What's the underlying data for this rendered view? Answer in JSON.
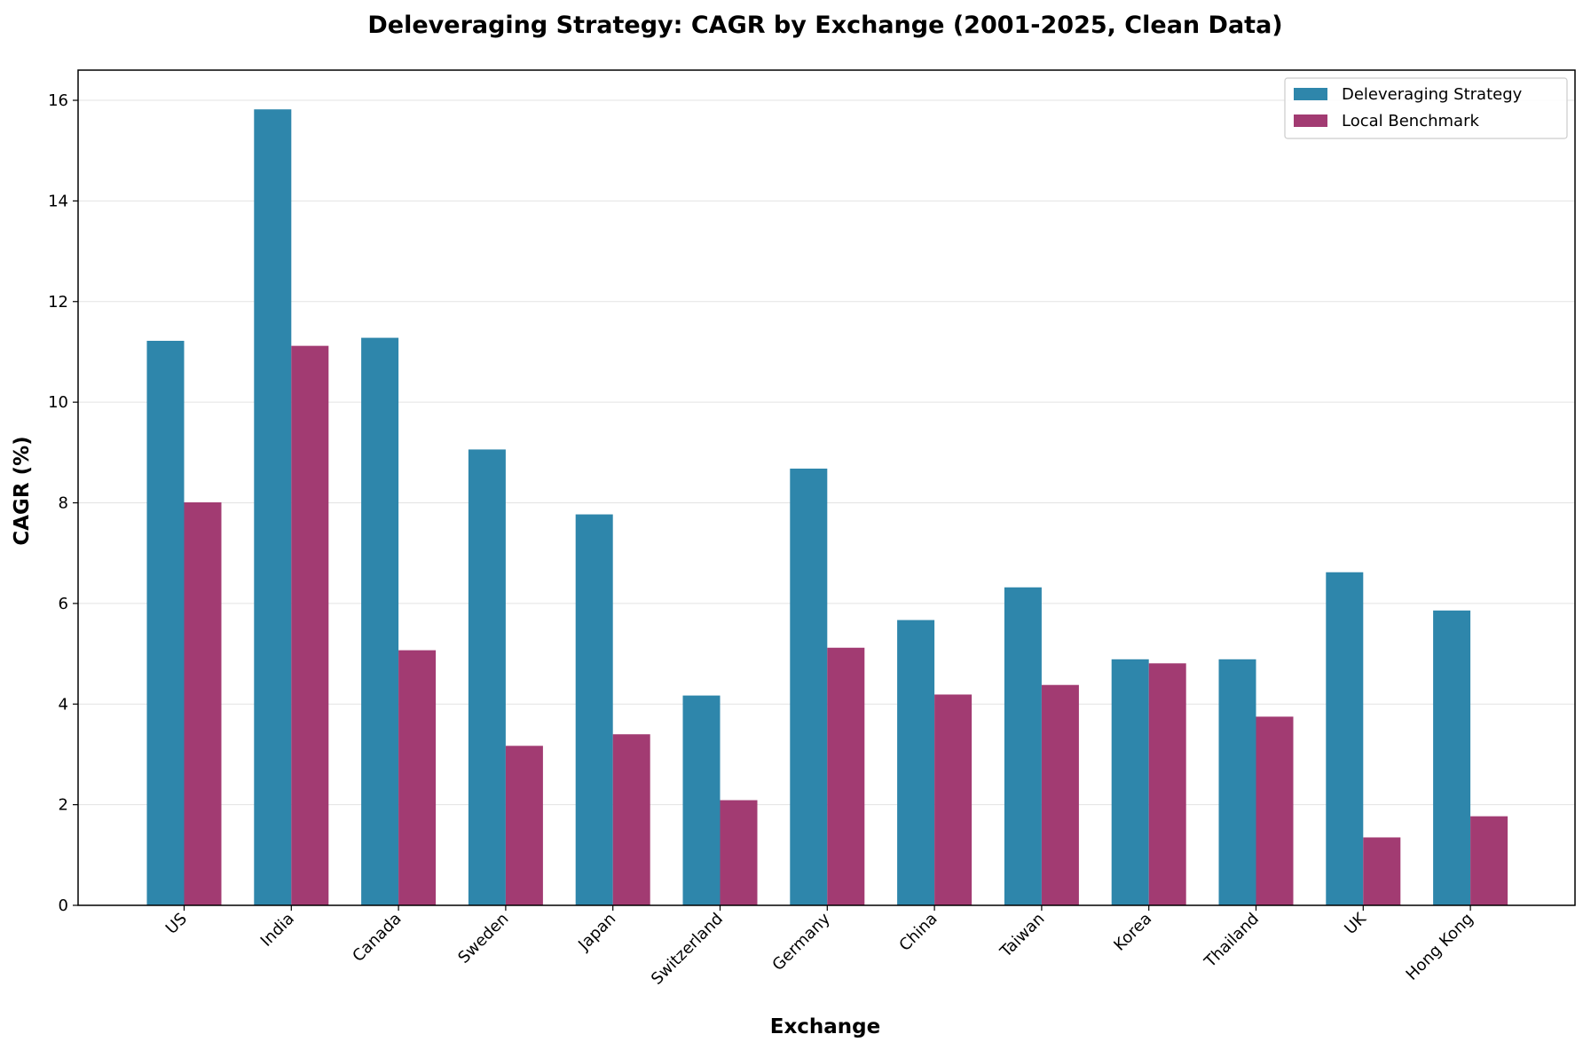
{
  "chart_data": {
    "type": "bar",
    "title": "Deleveraging Strategy: CAGR by Exchange (2001-2025, Clean Data)",
    "xlabel": "Exchange",
    "ylabel": "CAGR (%)",
    "ylim": [
      0,
      16.6
    ],
    "yticks": [
      "0",
      "2",
      "4",
      "6",
      "8",
      "10",
      "12",
      "14",
      "16"
    ],
    "grid": "y",
    "legend_position": "top-right",
    "categories": [
      "US",
      "India",
      "Canada",
      "Sweden",
      "Japan",
      "Switzerland",
      "Germany",
      "China",
      "Taiwan",
      "Korea",
      "Thailand",
      "UK",
      "Hong Kong"
    ],
    "series": [
      {
        "name": "Deleveraging Strategy",
        "color": "#2e86ab",
        "values": [
          11.22,
          15.82,
          11.28,
          9.06,
          7.77,
          4.17,
          8.68,
          5.67,
          6.32,
          4.89,
          4.89,
          6.62,
          5.86
        ]
      },
      {
        "name": "Local Benchmark",
        "color": "#a23b72",
        "values": [
          8.01,
          11.12,
          5.07,
          3.17,
          3.4,
          2.09,
          5.12,
          4.19,
          4.38,
          4.81,
          3.75,
          1.35,
          1.77
        ]
      }
    ]
  }
}
